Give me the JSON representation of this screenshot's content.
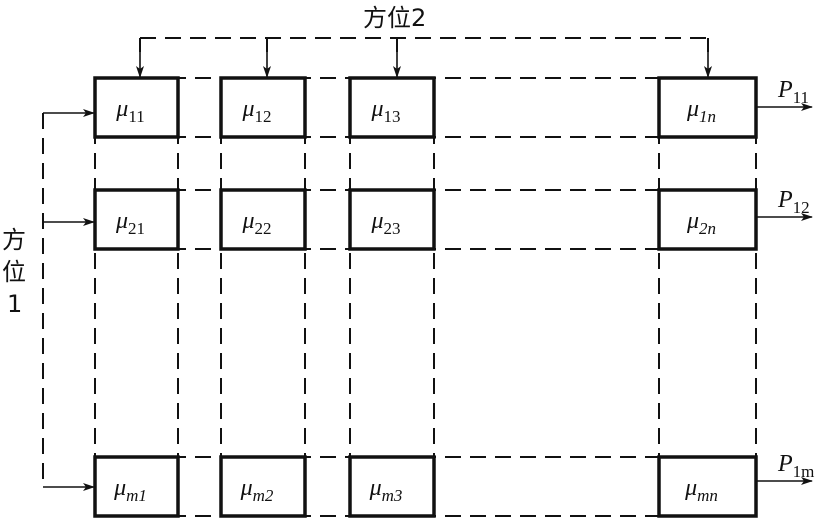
{
  "diagram": {
    "top_label": "方位2",
    "left_label": [
      "方",
      "位",
      "1"
    ],
    "cells": [
      [
        {
          "sym": "μ",
          "sub": "11"
        },
        {
          "sym": "μ",
          "sub": "12"
        },
        {
          "sym": "μ",
          "sub": "13"
        },
        {
          "sym": "μ",
          "sub": "1n"
        }
      ],
      [
        {
          "sym": "μ",
          "sub": "21"
        },
        {
          "sym": "μ",
          "sub": "22"
        },
        {
          "sym": "μ",
          "sub": "23"
        },
        {
          "sym": "μ",
          "sub": "2n"
        }
      ],
      [
        {
          "sym": "μ",
          "sub": "m1"
        },
        {
          "sym": "μ",
          "sub": "m2"
        },
        {
          "sym": "μ",
          "sub": "m3"
        },
        {
          "sym": "μ",
          "sub": "mn"
        }
      ]
    ],
    "outputs": [
      {
        "sym": "P",
        "sub": "11"
      },
      {
        "sym": "P",
        "sub": "12"
      },
      {
        "sym": "P",
        "sub": "1m"
      }
    ]
  }
}
